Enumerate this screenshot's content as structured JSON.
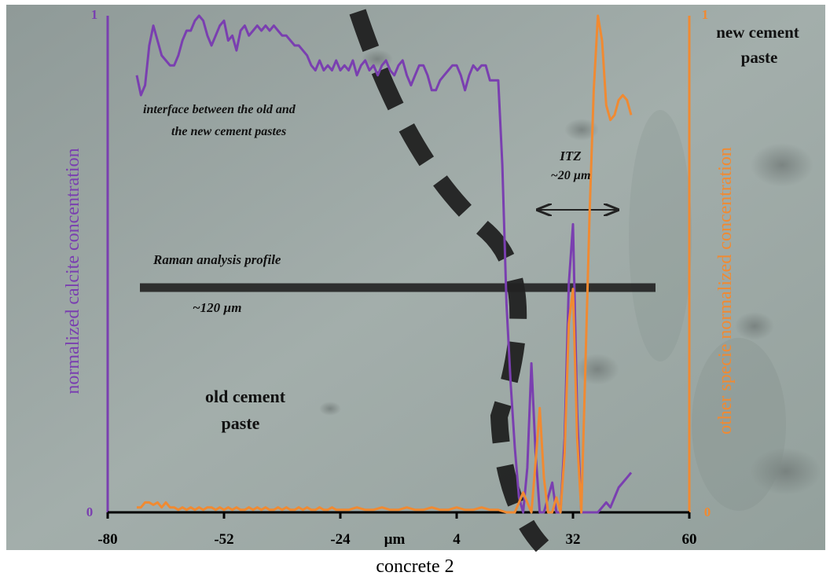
{
  "caption": "concrete 2",
  "colors": {
    "calcite": "#7a3fb0",
    "other": "#f08a32",
    "background": "#9aa6a3",
    "profile": "#222222",
    "interface": "#1a1a1a"
  },
  "labels": {
    "old_paste_line1": "old cement",
    "old_paste_line2": "paste",
    "new_paste_line1": "new cement",
    "new_paste_line2": "paste",
    "interface_line1": "interface between the old and",
    "interface_line2": "the new cement pastes",
    "raman_profile": "Raman analysis profile",
    "profile_length": "~120 µm",
    "itz_line1": "ITZ",
    "itz_line2": "~20 µm"
  },
  "chart_data": {
    "type": "line",
    "xlabel": "µm",
    "ylabel_left": "normalized calcite concentration",
    "ylabel_right": "other specie normalized concentration",
    "xlim": [
      -80,
      60
    ],
    "ylim": [
      0,
      1
    ],
    "x_ticks": [
      -80,
      -52,
      -24,
      4,
      32,
      60
    ],
    "y_ticks_left": [
      "0",
      "1"
    ],
    "y_ticks_right": [
      "0",
      "1"
    ],
    "series": [
      {
        "name": "calcite",
        "axis": "left",
        "points": [
          [
            -73,
            0.88
          ],
          [
            -72,
            0.84
          ],
          [
            -71,
            0.86
          ],
          [
            -70,
            0.94
          ],
          [
            -69,
            0.98
          ],
          [
            -68,
            0.95
          ],
          [
            -67,
            0.92
          ],
          [
            -66,
            0.91
          ],
          [
            -65,
            0.9
          ],
          [
            -64,
            0.9
          ],
          [
            -63,
            0.92
          ],
          [
            -62,
            0.95
          ],
          [
            -61,
            0.97
          ],
          [
            -60,
            0.97
          ],
          [
            -59,
            0.99
          ],
          [
            -58,
            1.0
          ],
          [
            -57,
            0.99
          ],
          [
            -56,
            0.96
          ],
          [
            -55,
            0.94
          ],
          [
            -54,
            0.96
          ],
          [
            -53,
            0.98
          ],
          [
            -52,
            0.99
          ],
          [
            -51,
            0.95
          ],
          [
            -50,
            0.96
          ],
          [
            -49,
            0.93
          ],
          [
            -48,
            0.97
          ],
          [
            -47,
            0.98
          ],
          [
            -46,
            0.96
          ],
          [
            -45,
            0.97
          ],
          [
            -44,
            0.98
          ],
          [
            -43,
            0.97
          ],
          [
            -42,
            0.98
          ],
          [
            -41,
            0.97
          ],
          [
            -40,
            0.98
          ],
          [
            -39,
            0.97
          ],
          [
            -38,
            0.96
          ],
          [
            -37,
            0.96
          ],
          [
            -36,
            0.95
          ],
          [
            -35,
            0.94
          ],
          [
            -34,
            0.94
          ],
          [
            -33,
            0.93
          ],
          [
            -32,
            0.92
          ],
          [
            -31,
            0.9
          ],
          [
            -30,
            0.89
          ],
          [
            -29,
            0.91
          ],
          [
            -28,
            0.89
          ],
          [
            -27,
            0.9
          ],
          [
            -26,
            0.89
          ],
          [
            -25,
            0.91
          ],
          [
            -24,
            0.89
          ],
          [
            -23,
            0.9
          ],
          [
            -22,
            0.89
          ],
          [
            -21,
            0.91
          ],
          [
            -20,
            0.88
          ],
          [
            -19,
            0.9
          ],
          [
            -18,
            0.91
          ],
          [
            -17,
            0.89
          ],
          [
            -16,
            0.9
          ],
          [
            -15,
            0.88
          ],
          [
            -14,
            0.9
          ],
          [
            -13,
            0.91
          ],
          [
            -12,
            0.89
          ],
          [
            -11,
            0.88
          ],
          [
            -10,
            0.9
          ],
          [
            -9,
            0.91
          ],
          [
            -8,
            0.88
          ],
          [
            -7,
            0.86
          ],
          [
            -6,
            0.88
          ],
          [
            -5,
            0.9
          ],
          [
            -4,
            0.9
          ],
          [
            -3,
            0.88
          ],
          [
            -2,
            0.85
          ],
          [
            -1,
            0.85
          ],
          [
            0,
            0.87
          ],
          [
            1,
            0.88
          ],
          [
            2,
            0.89
          ],
          [
            3,
            0.9
          ],
          [
            4,
            0.9
          ],
          [
            5,
            0.88
          ],
          [
            6,
            0.85
          ],
          [
            7,
            0.88
          ],
          [
            8,
            0.9
          ],
          [
            9,
            0.89
          ],
          [
            10,
            0.9
          ],
          [
            11,
            0.9
          ],
          [
            12,
            0.87
          ],
          [
            13,
            0.87
          ],
          [
            14,
            0.87
          ],
          [
            15,
            0.7
          ],
          [
            16,
            0.42
          ],
          [
            17,
            0.26
          ],
          [
            18,
            0.13
          ],
          [
            19,
            0.03
          ],
          [
            20,
            0.0
          ],
          [
            21,
            0.09
          ],
          [
            22,
            0.3
          ],
          [
            23,
            0.12
          ],
          [
            24,
            0.0
          ],
          [
            25,
            0.0
          ],
          [
            26,
            0.03
          ],
          [
            27,
            0.06
          ],
          [
            28,
            0.0
          ],
          [
            29,
            0.0
          ],
          [
            30,
            0.15
          ],
          [
            31,
            0.46
          ],
          [
            32,
            0.58
          ],
          [
            33,
            0.2
          ],
          [
            34,
            0.0
          ],
          [
            35,
            0.0
          ],
          [
            36,
            0.0
          ],
          [
            37,
            0.0
          ],
          [
            38,
            0.0
          ],
          [
            39,
            0.01
          ],
          [
            40,
            0.02
          ],
          [
            41,
            0.01
          ],
          [
            42,
            0.03
          ],
          [
            43,
            0.05
          ],
          [
            44,
            0.06
          ],
          [
            45,
            0.07
          ],
          [
            46,
            0.08
          ]
        ]
      },
      {
        "name": "other",
        "axis": "right",
        "points": [
          [
            -73,
            0.01
          ],
          [
            -72,
            0.01
          ],
          [
            -71,
            0.02
          ],
          [
            -70,
            0.02
          ],
          [
            -69,
            0.015
          ],
          [
            -68,
            0.02
          ],
          [
            -67,
            0.01
          ],
          [
            -66,
            0.02
          ],
          [
            -65,
            0.01
          ],
          [
            -64,
            0.01
          ],
          [
            -63,
            0.005
          ],
          [
            -62,
            0.01
          ],
          [
            -61,
            0.005
          ],
          [
            -60,
            0.01
          ],
          [
            -59,
            0.005
          ],
          [
            -58,
            0.01
          ],
          [
            -57,
            0.005
          ],
          [
            -56,
            0.01
          ],
          [
            -55,
            0.01
          ],
          [
            -54,
            0.005
          ],
          [
            -53,
            0.01
          ],
          [
            -52,
            0.005
          ],
          [
            -51,
            0.01
          ],
          [
            -50,
            0.005
          ],
          [
            -49,
            0.01
          ],
          [
            -48,
            0.005
          ],
          [
            -47,
            0.005
          ],
          [
            -46,
            0.01
          ],
          [
            -45,
            0.005
          ],
          [
            -44,
            0.01
          ],
          [
            -43,
            0.005
          ],
          [
            -42,
            0.01
          ],
          [
            -41,
            0.005
          ],
          [
            -40,
            0.005
          ],
          [
            -39,
            0.01
          ],
          [
            -38,
            0.005
          ],
          [
            -37,
            0.01
          ],
          [
            -36,
            0.005
          ],
          [
            -35,
            0.005
          ],
          [
            -34,
            0.01
          ],
          [
            -33,
            0.005
          ],
          [
            -32,
            0.01
          ],
          [
            -31,
            0.005
          ],
          [
            -30,
            0.005
          ],
          [
            -29,
            0.01
          ],
          [
            -28,
            0.005
          ],
          [
            -27,
            0.005
          ],
          [
            -26,
            0.01
          ],
          [
            -25,
            0.005
          ],
          [
            -24,
            0.005
          ],
          [
            -22,
            0.005
          ],
          [
            -20,
            0.01
          ],
          [
            -18,
            0.005
          ],
          [
            -16,
            0.005
          ],
          [
            -14,
            0.01
          ],
          [
            -12,
            0.005
          ],
          [
            -10,
            0.005
          ],
          [
            -8,
            0.01
          ],
          [
            -6,
            0.005
          ],
          [
            -4,
            0.005
          ],
          [
            -2,
            0.01
          ],
          [
            0,
            0.005
          ],
          [
            2,
            0.005
          ],
          [
            4,
            0.01
          ],
          [
            6,
            0.005
          ],
          [
            8,
            0.005
          ],
          [
            10,
            0.01
          ],
          [
            12,
            0.005
          ],
          [
            14,
            0.005
          ],
          [
            16,
            0.0
          ],
          [
            18,
            0.0
          ],
          [
            19,
            0.02
          ],
          [
            20,
            0.04
          ],
          [
            21,
            0.02
          ],
          [
            22,
            0.0
          ],
          [
            23,
            0.1
          ],
          [
            24,
            0.21
          ],
          [
            25,
            0.07
          ],
          [
            26,
            0.0
          ],
          [
            27,
            0.0
          ],
          [
            28,
            0.03
          ],
          [
            29,
            0.0
          ],
          [
            30,
            0.12
          ],
          [
            31,
            0.38
          ],
          [
            32,
            0.45
          ],
          [
            33,
            0.15
          ],
          [
            34,
            0.0
          ],
          [
            35,
            0.3
          ],
          [
            36,
            0.6
          ],
          [
            37,
            0.85
          ],
          [
            38,
            1.0
          ],
          [
            39,
            0.95
          ],
          [
            40,
            0.82
          ],
          [
            41,
            0.79
          ],
          [
            42,
            0.8
          ],
          [
            43,
            0.83
          ],
          [
            44,
            0.84
          ],
          [
            45,
            0.83
          ],
          [
            46,
            0.8
          ]
        ]
      }
    ]
  }
}
